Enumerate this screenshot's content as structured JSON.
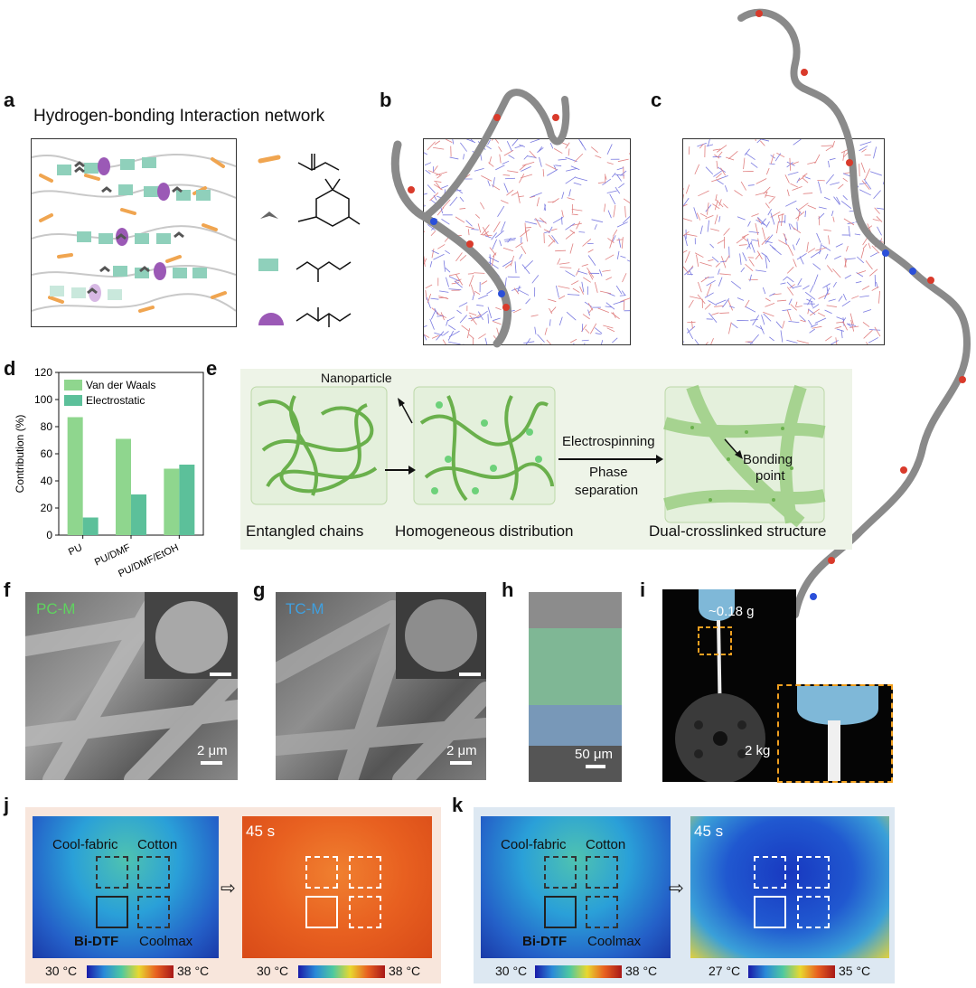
{
  "panels": {
    "a": "a",
    "b": "b",
    "c": "c",
    "d": "d",
    "e": "e",
    "f": "f",
    "g": "g",
    "h": "h",
    "i": "i",
    "j": "j",
    "k": "k"
  },
  "panel_a": {
    "title": "Hydrogen-bonding Interaction network"
  },
  "panel_e": {
    "nanoparticle": "Nanoparticle",
    "entangled": "Entangled chains",
    "homogeneous": "Homogeneous distribution",
    "electrospinning": "Electrospinning",
    "phase1": "Phase",
    "phase2": "separation",
    "bonding1": "Bonding",
    "bonding2": "point",
    "dual": "Dual-crosslinked structure"
  },
  "panel_f": {
    "label": "PC-M",
    "scale": "2 μm"
  },
  "panel_g": {
    "label": "TC-M",
    "scale": "2 μm"
  },
  "panel_h": {
    "scale": "50 μm"
  },
  "panel_i": {
    "weight_top": "~0.18 g",
    "weight_bottom": "2 kg"
  },
  "panel_j": {
    "cool_fabric": "Cool-fabric",
    "cotton": "Cotton",
    "bidtf": "Bi-DTF",
    "coolmax": "Coolmax",
    "time": "45 s",
    "cbar1_min": "30 °C",
    "cbar1_max": "38 °C",
    "cbar2_min": "30 °C",
    "cbar2_max": "38 °C",
    "bg": "#f8e6dc"
  },
  "panel_k": {
    "cool_fabric": "Cool-fabric",
    "cotton": "Cotton",
    "bidtf": "Bi-DTF",
    "coolmax": "Coolmax",
    "time": "45 s",
    "cbar1_min": "30 °C",
    "cbar1_max": "38 °C",
    "cbar2_min": "27 °C",
    "cbar2_max": "35 °C",
    "bg": "#dde8f2"
  },
  "chart_data": {
    "type": "bar",
    "categories": [
      "PU",
      "PU/DMF",
      "PU/DMF/EtOH"
    ],
    "series": [
      {
        "name": "Van der Waals",
        "values": [
          87,
          71,
          49
        ],
        "color": "#8fd68e"
      },
      {
        "name": "Electrostatic",
        "values": [
          13,
          30,
          52
        ],
        "color": "#5cc09a"
      }
    ],
    "xlabel": "",
    "ylabel": "Contribution (%)",
    "ylim": [
      0,
      120
    ],
    "yticks": [
      "0",
      "20",
      "40",
      "60",
      "80",
      "100",
      "120"
    ],
    "legend_position": "top-left"
  }
}
